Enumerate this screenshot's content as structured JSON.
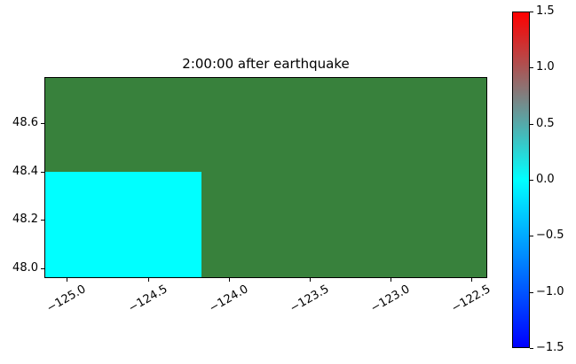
{
  "figure": {
    "background": "#ffffff"
  },
  "chart_data": {
    "type": "heatmap",
    "title": "2:00:00 after earthquake",
    "xlabel": "",
    "ylabel": "",
    "grid": false,
    "xlim": [
      -125.14,
      -122.4
    ],
    "ylim": [
      47.96,
      48.79
    ],
    "x_ticks": [
      {
        "value": -125.0,
        "label": "−125.0"
      },
      {
        "value": -124.5,
        "label": "−124.5"
      },
      {
        "value": -124.0,
        "label": "−124.0"
      },
      {
        "value": -123.5,
        "label": "−123.5"
      },
      {
        "value": -123.0,
        "label": "−123.0"
      },
      {
        "value": -122.5,
        "label": "−122.5"
      }
    ],
    "x_tick_rotation_deg": 30,
    "y_ticks": [
      {
        "value": 48.6,
        "label": "48.6"
      },
      {
        "value": 48.4,
        "label": "48.4"
      },
      {
        "value": 48.2,
        "label": "48.2"
      },
      {
        "value": 48.0,
        "label": "48.0"
      }
    ],
    "field": {
      "name": "background-field",
      "color": "#38813c",
      "x0": -125.14,
      "x1": -122.4,
      "y0": 47.96,
      "y1": 48.79
    },
    "patches": [
      {
        "name": "zero-anomaly-region",
        "color": "#00ffff",
        "value": 0.0,
        "x0": -125.14,
        "x1": -124.17,
        "y0": 47.96,
        "y1": 48.4
      }
    ],
    "colorbar": {
      "position": "right",
      "vmin": -1.5,
      "vmax": 1.5,
      "ticks": [
        {
          "value": 1.5,
          "label": "1.5"
        },
        {
          "value": 1.0,
          "label": "1.0"
        },
        {
          "value": 0.5,
          "label": "0.5"
        },
        {
          "value": 0.0,
          "label": "0.0"
        },
        {
          "value": -0.5,
          "label": "−0.5"
        },
        {
          "value": -1.0,
          "label": "−1.0"
        },
        {
          "value": -1.5,
          "label": "−1.5"
        }
      ],
      "gradient": [
        {
          "frac": 0.0,
          "color": "#0000ff"
        },
        {
          "frac": 0.5,
          "color": "#00ffff"
        },
        {
          "frac": 1.0,
          "color": "#ff0000"
        }
      ]
    },
    "colors": {
      "spine": "#000000",
      "text": "#000000",
      "field_green": "#38813c",
      "patch_cyan": "#00ffff"
    }
  }
}
